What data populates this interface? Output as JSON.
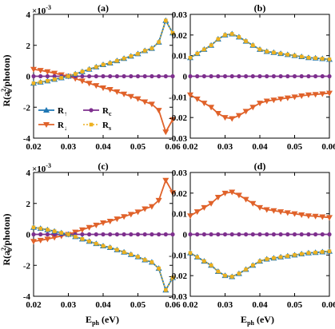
{
  "figure": {
    "ylabel_main": "R(a",
    "ylabel_sub": "0",
    "ylabel_sup": "2",
    "ylabel_tail": "/photon)",
    "xlabel_main": "E",
    "xlabel_sub": "ph",
    "xlabel_tail": " (eV)",
    "multiplier": "×10",
    "multiplier_exp": "-3"
  },
  "legend": [
    {
      "key": "up",
      "label": "R",
      "arrow": "↑"
    },
    {
      "key": "c",
      "label": "R",
      "sub": "c"
    },
    {
      "key": "down",
      "label": "R",
      "arrow": "↓"
    },
    {
      "key": "s",
      "label": "R",
      "sub": "s"
    }
  ],
  "colors": {
    "up": "#1f77b4",
    "down": "#e0622a",
    "c": "#7e2f8e",
    "s": "#edb120"
  },
  "chart_data": [
    {
      "panel": "(a)",
      "type": "line",
      "multiplier": "×10^-3",
      "xlim": [
        0.02,
        0.06
      ],
      "ylim": [
        -4,
        4
      ],
      "xticks": [
        0.02,
        0.03,
        0.04,
        0.05,
        0.06
      ],
      "yticks": [
        -4,
        -2,
        0,
        2,
        4
      ],
      "xticklabels": [
        "0.02",
        "0.03",
        "0.04",
        "0.05",
        "0.06"
      ],
      "yticklabels": [
        "-4",
        "-2",
        "0",
        "2",
        "4"
      ],
      "x": [
        0.02,
        0.022,
        0.024,
        0.026,
        0.028,
        0.03,
        0.032,
        0.034,
        0.036,
        0.038,
        0.04,
        0.042,
        0.044,
        0.046,
        0.048,
        0.05,
        0.052,
        0.054,
        0.056,
        0.058,
        0.06
      ],
      "series": [
        {
          "key": "up",
          "name": "R↑",
          "values": [
            -0.45,
            -0.38,
            -0.3,
            -0.2,
            -0.1,
            0.0,
            0.15,
            0.3,
            0.45,
            0.6,
            0.75,
            0.85,
            1.0,
            1.15,
            1.3,
            1.45,
            1.65,
            1.8,
            2.2,
            3.6,
            2.8
          ]
        },
        {
          "key": "down",
          "name": "R↓",
          "values": [
            0.45,
            0.38,
            0.3,
            0.2,
            0.1,
            0.0,
            -0.15,
            -0.3,
            -0.45,
            -0.6,
            -0.75,
            -0.85,
            -1.0,
            -1.15,
            -1.3,
            -1.45,
            -1.65,
            -1.8,
            -2.2,
            -3.6,
            -2.8
          ]
        },
        {
          "key": "c",
          "name": "Rc",
          "values": [
            0,
            0,
            0,
            0,
            0,
            0,
            0,
            0,
            0,
            0,
            0,
            0,
            0,
            0,
            0,
            0,
            0,
            0,
            0,
            0,
            0
          ]
        },
        {
          "key": "s",
          "name": "Rs",
          "values": [
            -0.45,
            -0.38,
            -0.3,
            -0.2,
            -0.1,
            0.0,
            0.15,
            0.3,
            0.45,
            0.6,
            0.75,
            0.85,
            1.0,
            1.15,
            1.3,
            1.45,
            1.65,
            1.8,
            2.2,
            3.6,
            2.8
          ]
        }
      ]
    },
    {
      "panel": "(b)",
      "type": "line",
      "xlim": [
        0.02,
        0.06
      ],
      "ylim": [
        -0.03,
        0.03
      ],
      "xticks": [
        0.02,
        0.03,
        0.04,
        0.05,
        0.06
      ],
      "yticks": [
        -0.03,
        -0.02,
        -0.01,
        0,
        0.01,
        0.02,
        0.03
      ],
      "xticklabels": [
        "0.02",
        "0.03",
        "0.04",
        "0.05",
        "0.06"
      ],
      "yticklabels": [
        "-0.03",
        "-0.02",
        "-0.01",
        "0",
        "0.01",
        "0.02",
        "0.03"
      ],
      "x": [
        0.02,
        0.022,
        0.024,
        0.026,
        0.028,
        0.03,
        0.032,
        0.034,
        0.036,
        0.038,
        0.04,
        0.042,
        0.044,
        0.046,
        0.048,
        0.05,
        0.052,
        0.054,
        0.056,
        0.058,
        0.06
      ],
      "series": [
        {
          "key": "up",
          "name": "R↑",
          "values": [
            0.009,
            0.011,
            0.013,
            0.015,
            0.018,
            0.02,
            0.0205,
            0.019,
            0.017,
            0.015,
            0.013,
            0.012,
            0.0115,
            0.011,
            0.0105,
            0.01,
            0.0095,
            0.009,
            0.0088,
            0.0085,
            0.0082
          ]
        },
        {
          "key": "down",
          "name": "R↓",
          "values": [
            -0.009,
            -0.011,
            -0.013,
            -0.015,
            -0.018,
            -0.02,
            -0.0205,
            -0.019,
            -0.017,
            -0.015,
            -0.013,
            -0.012,
            -0.0115,
            -0.011,
            -0.0105,
            -0.01,
            -0.0095,
            -0.009,
            -0.0088,
            -0.0085,
            -0.0082
          ]
        },
        {
          "key": "c",
          "name": "Rc",
          "values": [
            0,
            0,
            0,
            0,
            0,
            0,
            0,
            0,
            0,
            0,
            0,
            0,
            0,
            0,
            0,
            0,
            0,
            0,
            0,
            0,
            0
          ]
        },
        {
          "key": "s",
          "name": "Rs",
          "values": [
            0.009,
            0.011,
            0.013,
            0.015,
            0.018,
            0.02,
            0.0205,
            0.019,
            0.017,
            0.015,
            0.013,
            0.012,
            0.0115,
            0.011,
            0.0105,
            0.01,
            0.0095,
            0.009,
            0.0088,
            0.0085,
            0.0082
          ]
        }
      ]
    },
    {
      "panel": "(c)",
      "type": "line",
      "multiplier": "×10^-3",
      "xlim": [
        0.02,
        0.06
      ],
      "ylim": [
        -4,
        4
      ],
      "xticks": [
        0.02,
        0.03,
        0.04,
        0.05,
        0.06
      ],
      "yticks": [
        -4,
        -2,
        0,
        2,
        4
      ],
      "xticklabels": [
        "0.02",
        "0.03",
        "0.04",
        "0.05",
        "0.06"
      ],
      "yticklabels": [
        "-4",
        "-2",
        "0",
        "2",
        "4"
      ],
      "x": [
        0.02,
        0.022,
        0.024,
        0.026,
        0.028,
        0.03,
        0.032,
        0.034,
        0.036,
        0.038,
        0.04,
        0.042,
        0.044,
        0.046,
        0.048,
        0.05,
        0.052,
        0.054,
        0.056,
        0.058,
        0.06
      ],
      "series": [
        {
          "key": "up",
          "name": "R↑",
          "values": [
            0.45,
            0.38,
            0.3,
            0.2,
            0.1,
            0.0,
            -0.15,
            -0.3,
            -0.45,
            -0.6,
            -0.75,
            -0.85,
            -1.0,
            -1.15,
            -1.3,
            -1.45,
            -1.65,
            -1.8,
            -2.2,
            -3.6,
            -2.8
          ]
        },
        {
          "key": "down",
          "name": "R↓",
          "values": [
            -0.45,
            -0.38,
            -0.3,
            -0.2,
            -0.1,
            0.0,
            0.15,
            0.3,
            0.45,
            0.6,
            0.75,
            0.85,
            1.0,
            1.15,
            1.3,
            1.45,
            1.65,
            1.8,
            2.2,
            3.5,
            2.7
          ]
        },
        {
          "key": "c",
          "name": "Rc",
          "values": [
            0,
            0,
            0,
            0,
            0,
            0,
            0,
            0,
            0,
            0,
            0,
            0,
            0,
            0,
            0,
            0,
            0,
            0,
            0,
            0,
            0
          ]
        },
        {
          "key": "s",
          "name": "Rs",
          "values": [
            0.45,
            0.38,
            0.3,
            0.2,
            0.1,
            0.0,
            -0.15,
            -0.3,
            -0.45,
            -0.6,
            -0.75,
            -0.85,
            -1.0,
            -1.15,
            -1.3,
            -1.45,
            -1.65,
            -1.8,
            -2.2,
            -3.6,
            -2.8
          ]
        }
      ]
    },
    {
      "panel": "(d)",
      "type": "line",
      "xlim": [
        0.02,
        0.06
      ],
      "ylim": [
        -0.03,
        0.03
      ],
      "xticks": [
        0.02,
        0.03,
        0.04,
        0.05,
        0.06
      ],
      "yticks": [
        -0.03,
        -0.02,
        -0.01,
        0,
        0.01,
        0.02,
        0.03
      ],
      "xticklabels": [
        "0.02",
        "0.03",
        "0.04",
        "0.05",
        "0.06"
      ],
      "yticklabels": [
        "-0.03",
        "-0.02",
        "-0.01",
        "0",
        "0.01",
        "0.02",
        "0.03"
      ],
      "x": [
        0.02,
        0.022,
        0.024,
        0.026,
        0.028,
        0.03,
        0.032,
        0.034,
        0.036,
        0.038,
        0.04,
        0.042,
        0.044,
        0.046,
        0.048,
        0.05,
        0.052,
        0.054,
        0.056,
        0.058,
        0.06
      ],
      "series": [
        {
          "key": "up",
          "name": "R↑",
          "values": [
            -0.009,
            -0.011,
            -0.013,
            -0.015,
            -0.018,
            -0.02,
            -0.0205,
            -0.019,
            -0.017,
            -0.015,
            -0.013,
            -0.012,
            -0.0115,
            -0.011,
            -0.0105,
            -0.01,
            -0.0095,
            -0.009,
            -0.0088,
            -0.0085,
            -0.0082
          ]
        },
        {
          "key": "down",
          "name": "R↓",
          "values": [
            0.009,
            0.011,
            0.013,
            0.015,
            0.018,
            0.02,
            0.0205,
            0.019,
            0.017,
            0.015,
            0.013,
            0.012,
            0.0115,
            0.011,
            0.0105,
            0.01,
            0.0095,
            0.009,
            0.0088,
            0.0085,
            0.0082
          ]
        },
        {
          "key": "c",
          "name": "Rc",
          "values": [
            0,
            0,
            0,
            0,
            0,
            0,
            0,
            0,
            0,
            0,
            0,
            0,
            0,
            0,
            0,
            0,
            0,
            0,
            0,
            0,
            0
          ]
        },
        {
          "key": "s",
          "name": "Rs",
          "values": [
            -0.009,
            -0.011,
            -0.013,
            -0.015,
            -0.018,
            -0.02,
            -0.0205,
            -0.019,
            -0.017,
            -0.015,
            -0.013,
            -0.012,
            -0.0115,
            -0.011,
            -0.0105,
            -0.01,
            -0.0095,
            -0.009,
            -0.0088,
            -0.0085,
            -0.0082
          ]
        }
      ]
    }
  ]
}
